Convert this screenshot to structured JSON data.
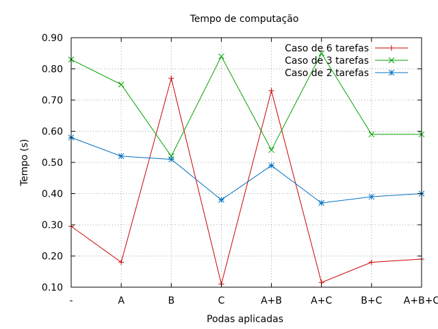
{
  "chart_data": {
    "type": "line",
    "title": "Tempo de computação",
    "xlabel": "Podas aplicadas",
    "ylabel": "Tempo (s)",
    "categories": [
      "-",
      "A",
      "B",
      "C",
      "A+B",
      "A+C",
      "B+C",
      "A+B+C"
    ],
    "ylim": [
      0.1,
      0.9
    ],
    "yticks": [
      "0.10",
      "0.20",
      "0.30",
      "0.40",
      "0.50",
      "0.60",
      "0.70",
      "0.80",
      "0.90"
    ],
    "grid": true,
    "legend_position": "top-right",
    "series": [
      {
        "name": "Caso de 6 tarefas",
        "color": "#cc0000",
        "marker": "plus",
        "values": [
          0.295,
          0.18,
          0.77,
          0.11,
          0.73,
          0.115,
          0.18,
          0.19
        ]
      },
      {
        "name": "Caso de 3 tarefas",
        "color": "#00a000",
        "marker": "cross",
        "values": [
          0.83,
          0.75,
          0.52,
          0.84,
          0.54,
          0.85,
          0.59,
          0.59
        ]
      },
      {
        "name": "Caso de 2 tarefas",
        "color": "#0070c0",
        "marker": "star",
        "values": [
          0.58,
          0.52,
          0.51,
          0.38,
          0.49,
          0.37,
          0.39,
          0.4
        ]
      }
    ]
  }
}
